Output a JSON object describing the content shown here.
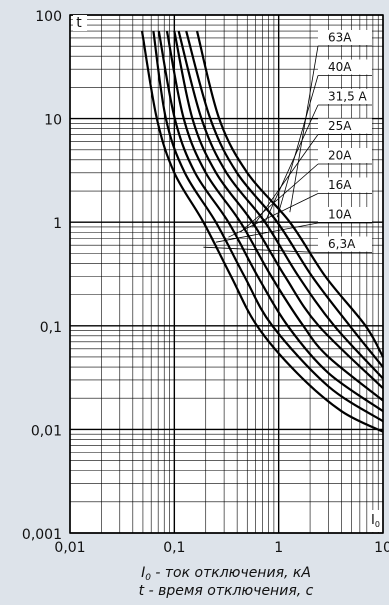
{
  "chart_data": {
    "type": "line",
    "log_x": true,
    "log_y": true,
    "grid": true,
    "color": "#000000",
    "ylabel": "t",
    "xlabel_corner": [
      "I",
      "0"
    ],
    "xlabel": [
      "I",
      "0",
      " - ток отключения, кА"
    ],
    "note": "t - время отключения, с",
    "xlim": [
      0.01,
      10
    ],
    "ylim": [
      0.001,
      100
    ],
    "xticks": [
      {
        "value": 0.01,
        "label": "0,01"
      },
      {
        "value": 0.1,
        "label": "0,1"
      },
      1,
      10
    ],
    "yticks": [
      {
        "value": 0.001,
        "label": "0,001"
      },
      {
        "value": 0.01,
        "label": "0,01"
      },
      {
        "value": 0.1,
        "label": "0,1"
      },
      1,
      10,
      100
    ],
    "series": [
      {
        "name": "63A",
        "x": [
          0.165,
          0.269,
          0.5,
          1.28,
          2.8,
          6.8,
          10
        ],
        "values": [
          70,
          10,
          3,
          1,
          0.3,
          0.1,
          0.05
        ]
      },
      {
        "name": "40A",
        "x": [
          0.13,
          0.221,
          0.398,
          0.97,
          2.09,
          4.8,
          10
        ],
        "values": [
          70,
          10,
          3,
          1,
          0.3,
          0.1,
          0.04
        ]
      },
      {
        "name": "31,5 A",
        "x": [
          0.11,
          0.182,
          0.316,
          0.74,
          1.55,
          3.41,
          10
        ],
        "values": [
          70,
          10,
          3,
          1,
          0.3,
          0.1,
          0.031
        ]
      },
      {
        "name": "25A",
        "x": [
          0.1,
          0.149,
          0.251,
          0.56,
          1.15,
          2.42,
          10
        ],
        "values": [
          70,
          10,
          3,
          1,
          0.3,
          0.1,
          0.025
        ]
      },
      {
        "name": "20A",
        "x": [
          0.085,
          0.123,
          0.2,
          0.43,
          0.85,
          1.72,
          3,
          10
        ],
        "values": [
          70,
          10,
          3,
          1,
          0.3,
          0.1,
          0.05,
          0.019
        ]
      },
      {
        "name": "16A",
        "x": [
          0.071,
          0.101,
          0.158,
          0.33,
          0.63,
          1.22,
          3,
          10
        ],
        "values": [
          70,
          10,
          3,
          1,
          0.3,
          0.1,
          0.035,
          0.015
        ]
      },
      {
        "name": "10A",
        "x": [
          0.063,
          0.083,
          0.126,
          0.25,
          0.47,
          0.87,
          3,
          10
        ],
        "values": [
          70,
          10,
          3,
          1,
          0.3,
          0.1,
          0.026,
          0.012
        ]
      },
      {
        "name": "6,3A",
        "x": [
          0.049,
          0.068,
          0.1,
          0.19,
          0.35,
          0.62,
          1.5,
          4,
          10
        ],
        "values": [
          70,
          10,
          3,
          1,
          0.3,
          0.1,
          0.035,
          0.015,
          0.0095
        ]
      }
    ]
  }
}
